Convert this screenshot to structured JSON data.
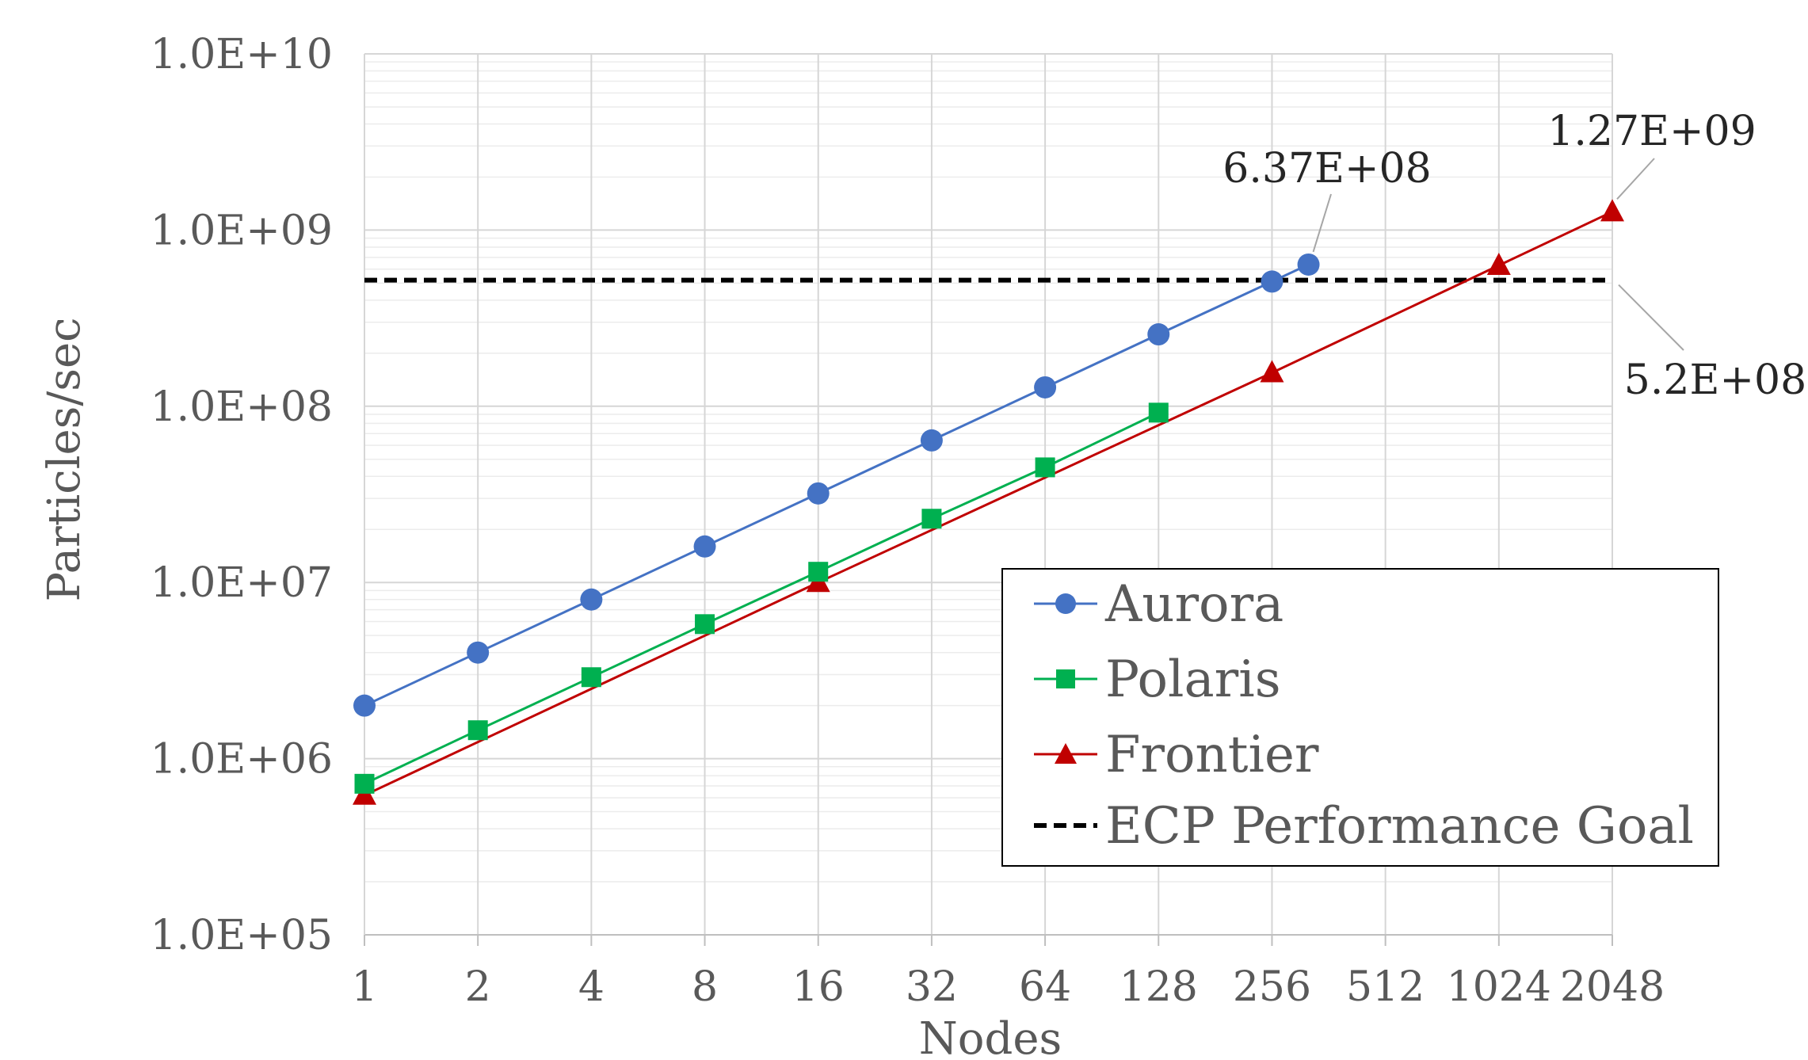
{
  "chart_data": {
    "type": "line",
    "title": "",
    "xlabel": "Nodes",
    "ylabel": "Particles/sec",
    "x_categories": [
      "1",
      "2",
      "4",
      "8",
      "16",
      "32",
      "64",
      "128",
      "256",
      "512",
      "1024",
      "2048"
    ],
    "x_values": [
      1,
      2,
      4,
      8,
      16,
      32,
      64,
      128,
      256,
      512,
      1024,
      2048
    ],
    "x_scale": "log2",
    "y_scale": "log10",
    "ylim": [
      100000,
      10000000000
    ],
    "y_tick_values": [
      100000,
      1000000,
      10000000,
      100000000,
      1000000000,
      10000000000
    ],
    "y_tick_labels": [
      "1.0E+05",
      "1.0E+06",
      "1.0E+07",
      "1.0E+08",
      "1.0E+09",
      "1.0E+10"
    ],
    "grid": true,
    "legend_position": "bottom-right",
    "series": [
      {
        "name": "Aurora",
        "color": "#4472c4",
        "marker": "circle",
        "points": [
          [
            1,
            2000000
          ],
          [
            2,
            4000000
          ],
          [
            4,
            8000000
          ],
          [
            8,
            16000000
          ],
          [
            16,
            32000000
          ],
          [
            32,
            64000000
          ],
          [
            64,
            128000000
          ],
          [
            128,
            256000000
          ],
          [
            256,
            510000000
          ],
          [
            320,
            637000000
          ]
        ]
      },
      {
        "name": "Polaris",
        "color": "#00b050",
        "marker": "square",
        "points": [
          [
            1,
            720000
          ],
          [
            2,
            1450000
          ],
          [
            4,
            2900000
          ],
          [
            8,
            5800000
          ],
          [
            16,
            11500000
          ],
          [
            32,
            23000000
          ],
          [
            64,
            45000000
          ],
          [
            128,
            92000000
          ]
        ]
      },
      {
        "name": "Frontier",
        "color": "#c00000",
        "marker": "triangle",
        "points": [
          [
            1,
            620000
          ],
          [
            16,
            10000000
          ],
          [
            256,
            155000000
          ],
          [
            1024,
            630000000
          ],
          [
            2048,
            1270000000
          ]
        ]
      },
      {
        "name": "ECP Performance Goal",
        "color": "#000000",
        "marker": "none",
        "dashed": true,
        "points": [
          [
            1,
            520000000
          ],
          [
            2048,
            520000000
          ]
        ]
      }
    ],
    "annotations": [
      {
        "text": "6.37E+08",
        "x": 320,
        "y": 637000000
      },
      {
        "text": "1.27E+09",
        "x": 2048,
        "y": 1270000000
      },
      {
        "text": "5.2E+08",
        "x": 2048,
        "y": 520000000
      }
    ]
  }
}
